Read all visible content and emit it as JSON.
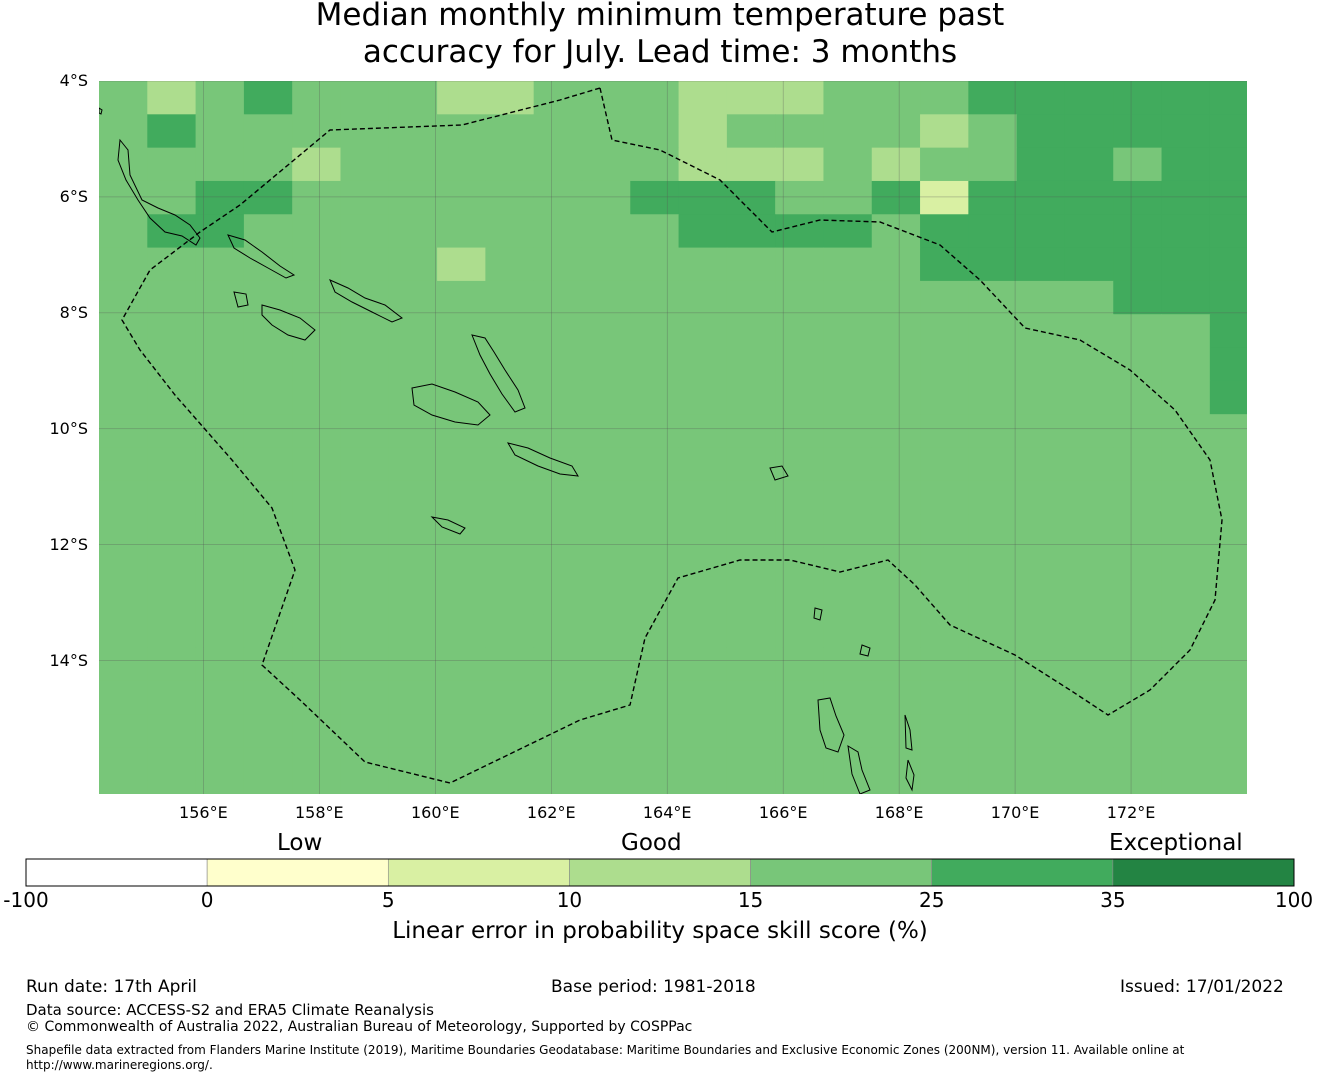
{
  "title": {
    "line1": "Median monthly minimum temperature past",
    "line2": "accuracy for July. Lead time: 3 months"
  },
  "map": {
    "lat_labels": [
      "4°S",
      "6°S",
      "8°S",
      "10°S",
      "12°S",
      "14°S"
    ],
    "lon_labels": [
      "156°E",
      "158°E",
      "160°E",
      "162°E",
      "164°E",
      "166°E",
      "168°E",
      "170°E",
      "172°E"
    ],
    "extent": {
      "lon_min": 154.2,
      "lon_max": 174.0,
      "lat_top": -4.0,
      "lat_bottom": -16.3
    },
    "grid_start": {
      "lon": 154.2,
      "lat": -4.0,
      "step": 0.833
    },
    "skill_class_grid": [
      "434544433444333444555555",
      "454444444444344443455555",
      "444434444444333434455455",
      "445544444445554452555555",
      "455444444444555545555555",
      "444444434444444445555555",
      "444444444444444444444555",
      "444444444444444444444445",
      "444444444444444444444445",
      "444444444444444444444445",
      "444444444444444444444444",
      "444444444444444444444444",
      "444444444444444444444444",
      "444444444444444444444444",
      "444444444444444444444444",
      "444444444444444444444444",
      "444444444444444444444444",
      "444444444444444444444444",
      "444444444444444444444444",
      "444444444444444444444444",
      "444444444444444444444444",
      "444444444444444444444444"
    ]
  },
  "legend": {
    "categories": [
      "Low",
      "Good",
      "Exceptional"
    ],
    "ticks": [
      "-100",
      "0",
      "5",
      "10",
      "15",
      "25",
      "35",
      "100"
    ],
    "colors": [
      "#ffffff",
      "#ffffcc",
      "#d9f0a3",
      "#addd8e",
      "#78c679",
      "#41ab5d",
      "#238443"
    ],
    "axis_title": "Linear error in probability space skill score (%)"
  },
  "footer": {
    "run_date": "Run date: 17th April",
    "base_period": "Base period: 1981-2018",
    "issued": "Issued: 17/01/2022",
    "data_source": "Data source: ACCESS-S2 and ERA5 Climate Reanalysis",
    "copyright": "© Commonwealth of Australia 2022, Australian Bureau of Meteorology, Supported by COSPPac",
    "shapefile": "Shapefile data extracted from Flanders Marine Institute (2019), Maritime Boundaries Geodatabase: Maritime Boundaries and Exclusive Economic Zones (200NM), version 11. Available online at http://www.marineregions.org/."
  }
}
